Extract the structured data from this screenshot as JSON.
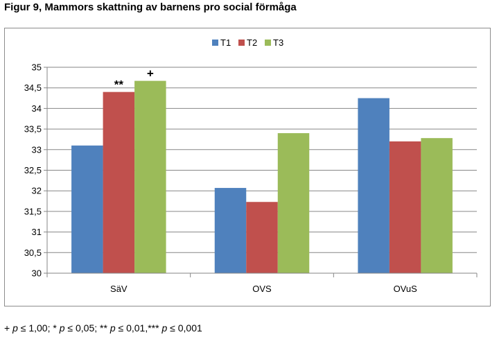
{
  "title": "Figur 9, Mammors skattning av barnens pro social förmåga",
  "footnote": {
    "sym1": "+",
    "p": "p",
    "cond1": "≤ 1,00;",
    "sym2": "*",
    "cond2": "≤ 0,05;",
    "sym3": "**",
    "cond3": "≤ 0,01,",
    "sym4": "***",
    "cond4": "≤ 0,001"
  },
  "chart_data": {
    "type": "bar",
    "title": "",
    "xlabel": "",
    "ylabel": "",
    "categories": [
      "SäV",
      "OVS",
      "OVuS"
    ],
    "series": [
      {
        "name": "T1",
        "color": "#4f81bd",
        "values": [
          33.1,
          32.07,
          34.25
        ]
      },
      {
        "name": "T2",
        "color": "#c0504d",
        "values": [
          34.4,
          31.73,
          33.2
        ]
      },
      {
        "name": "T3",
        "color": "#9bbb59",
        "values": [
          34.67,
          33.4,
          33.28
        ]
      }
    ],
    "ylim": [
      30,
      35
    ],
    "ytick_labels": [
      "30",
      "30,5",
      "31",
      "31,5",
      "32",
      "32,5",
      "33",
      "33,5",
      "34",
      "34,5",
      "35"
    ],
    "grid": true,
    "legend_position": "top-center",
    "annotations": [
      {
        "category": "SäV",
        "series": "T2",
        "text": "**"
      },
      {
        "category": "SäV",
        "series": "T3",
        "text": "+"
      }
    ]
  }
}
